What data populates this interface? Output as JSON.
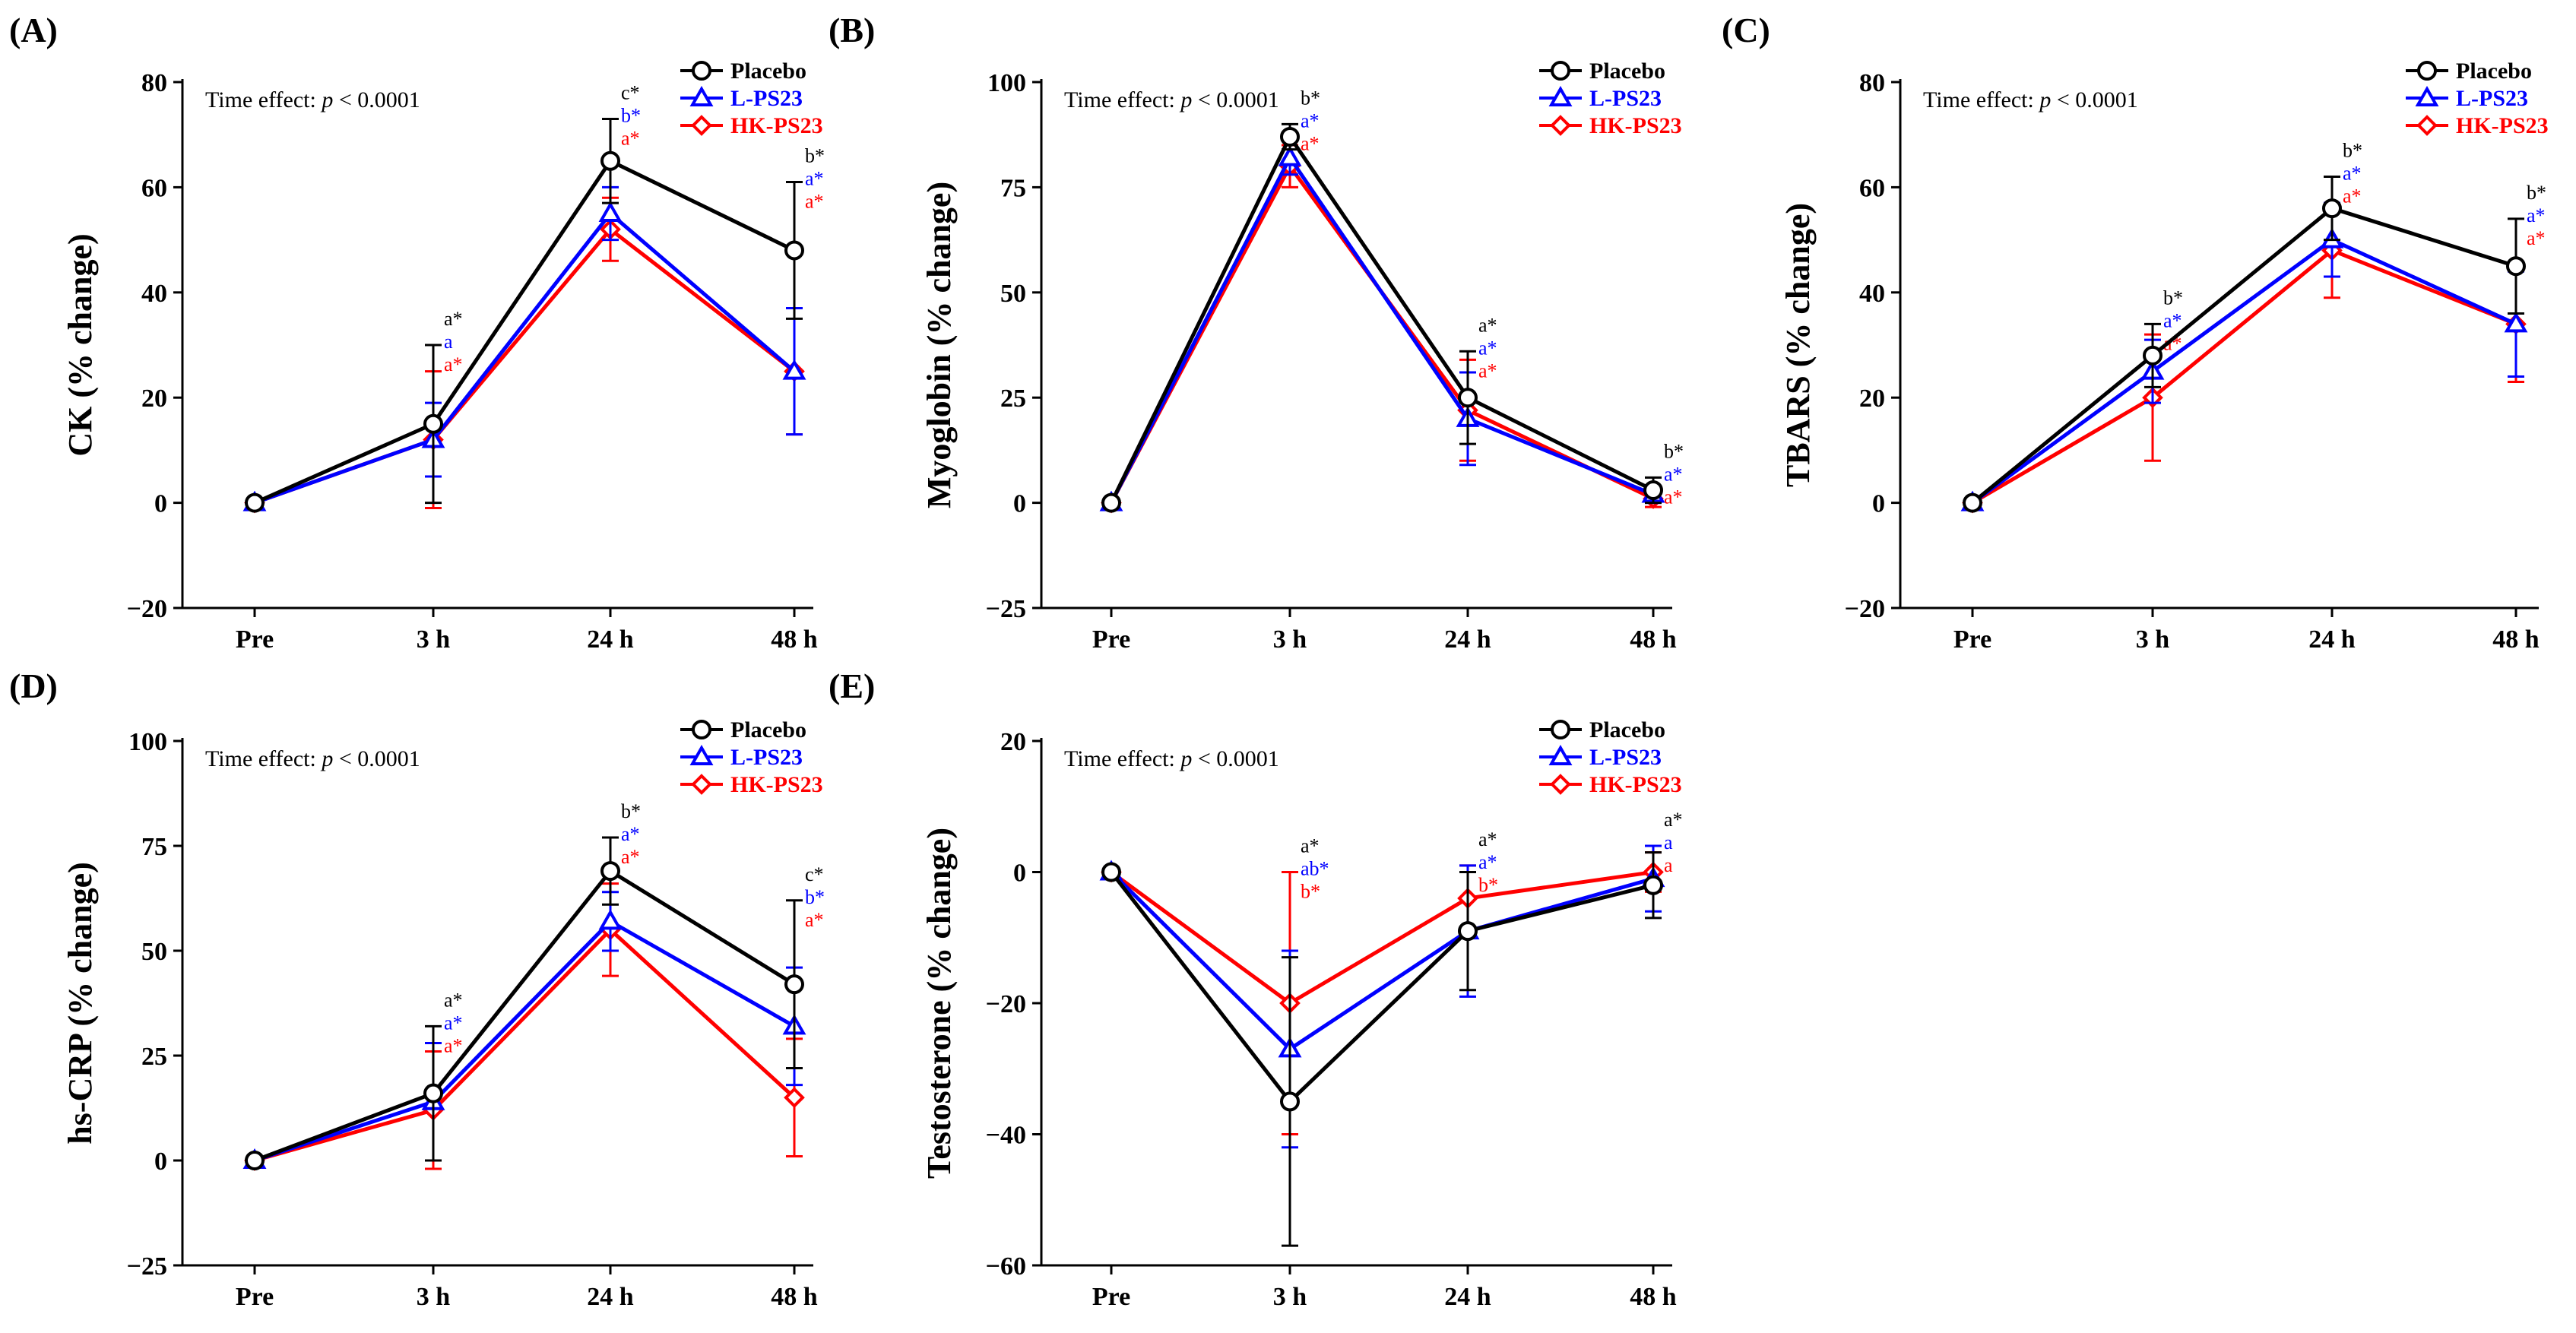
{
  "figure": {
    "series_colors": {
      "Placebo": "#000000",
      "L-PS23": "#0000ff",
      "HK-PS23": "#ff0000"
    },
    "marker_icons": {
      "Placebo": "circle-icon",
      "L-PS23": "triangle-icon",
      "HK-PS23": "diamond-icon"
    }
  },
  "chart_data": [
    {
      "id": "A",
      "panel_label": "(A)",
      "type": "line",
      "ylabel": "CK (% change)",
      "xlabel": "",
      "categories": [
        "Pre",
        "3 h",
        "24 h",
        "48 h"
      ],
      "ylim": [
        -20,
        80
      ],
      "yticks": [
        -20,
        0,
        20,
        40,
        60,
        80
      ],
      "ytick_labels": [
        "−20",
        "0",
        "20",
        "40",
        "60",
        "80"
      ],
      "note_prefix": "Time effect: ",
      "note_p": "p",
      "note_suffix": " < 0.0001",
      "legend": [
        "Placebo",
        "L-PS23",
        "HK-PS23"
      ],
      "series": [
        {
          "name": "Placebo",
          "values": [
            0,
            15,
            65,
            48
          ],
          "err": [
            0,
            15,
            8,
            13
          ],
          "labels": [
            "",
            "a*",
            "c*",
            "b*"
          ]
        },
        {
          "name": "L-PS23",
          "values": [
            0,
            12,
            55,
            25
          ],
          "err": [
            0,
            7,
            5,
            12
          ],
          "labels": [
            "",
            "a",
            "b*",
            "a*"
          ]
        },
        {
          "name": "HK-PS23",
          "values": [
            0,
            12,
            52,
            25
          ],
          "err": [
            0,
            13,
            6,
            12
          ],
          "labels": [
            "",
            "a*",
            "a*",
            "a*"
          ]
        }
      ]
    },
    {
      "id": "B",
      "panel_label": "(B)",
      "type": "line",
      "ylabel": "Myoglobin (% change)",
      "xlabel": "",
      "categories": [
        "Pre",
        "3 h",
        "24 h",
        "48 h"
      ],
      "ylim": [
        -25,
        100
      ],
      "yticks": [
        -25,
        0,
        25,
        50,
        75,
        100
      ],
      "ytick_labels": [
        "−25",
        "0",
        "25",
        "50",
        "75",
        "100"
      ],
      "note_prefix": "Time effect: ",
      "note_p": "p",
      "note_suffix": " < 0.0001",
      "legend": [
        "Placebo",
        "L-PS23",
        "HK-PS23"
      ],
      "series": [
        {
          "name": "Placebo",
          "values": [
            0,
            87,
            25,
            3
          ],
          "err": [
            0,
            3,
            11,
            3
          ],
          "labels": [
            "",
            "b*",
            "a*",
            "b*"
          ]
        },
        {
          "name": "L-PS23",
          "values": [
            0,
            82,
            20,
            2
          ],
          "err": [
            0,
            4,
            11,
            2
          ],
          "labels": [
            "",
            "a*",
            "a*",
            "a*"
          ]
        },
        {
          "name": "HK-PS23",
          "values": [
            0,
            80,
            22,
            1
          ],
          "err": [
            0,
            5,
            12,
            2
          ],
          "labels": [
            "",
            "a*",
            "a*",
            "a*"
          ]
        }
      ]
    },
    {
      "id": "C",
      "panel_label": "(C)",
      "type": "line",
      "ylabel": "TBARS (% change)",
      "xlabel": "",
      "categories": [
        "Pre",
        "3 h",
        "24 h",
        "48 h"
      ],
      "ylim": [
        -20,
        80
      ],
      "yticks": [
        -20,
        0,
        20,
        40,
        60,
        80
      ],
      "ytick_labels": [
        "−20",
        "0",
        "20",
        "40",
        "60",
        "80"
      ],
      "note_prefix": "Time effect: ",
      "note_p": "p",
      "note_suffix": " < 0.0001",
      "legend": [
        "Placebo",
        "L-PS23",
        "HK-PS23"
      ],
      "series": [
        {
          "name": "Placebo",
          "values": [
            0,
            28,
            56,
            45
          ],
          "err": [
            0,
            6,
            6,
            9
          ],
          "labels": [
            "",
            "b*",
            "b*",
            "b*"
          ]
        },
        {
          "name": "L-PS23",
          "values": [
            0,
            25,
            50,
            34
          ],
          "err": [
            0,
            6,
            7,
            10
          ],
          "labels": [
            "",
            "a*",
            "a*",
            "a*"
          ]
        },
        {
          "name": "HK-PS23",
          "values": [
            0,
            20,
            48,
            34
          ],
          "err": [
            0,
            12,
            9,
            11
          ],
          "labels": [
            "",
            "a*",
            "a*",
            "a*"
          ]
        }
      ]
    },
    {
      "id": "D",
      "panel_label": "(D)",
      "type": "line",
      "ylabel": "hs-CRP (% change)",
      "xlabel": "",
      "categories": [
        "Pre",
        "3 h",
        "24 h",
        "48 h"
      ],
      "ylim": [
        -25,
        100
      ],
      "yticks": [
        -25,
        0,
        25,
        50,
        75,
        100
      ],
      "ytick_labels": [
        "−25",
        "0",
        "25",
        "50",
        "75",
        "100"
      ],
      "note_prefix": "Time effect: ",
      "note_p": "p",
      "note_suffix": " < 0.0001",
      "legend": [
        "Placebo",
        "L-PS23",
        "HK-PS23"
      ],
      "series": [
        {
          "name": "Placebo",
          "values": [
            0,
            16,
            69,
            42
          ],
          "err": [
            0,
            16,
            8,
            20
          ],
          "labels": [
            "",
            "a*",
            "b*",
            "c*"
          ]
        },
        {
          "name": "L-PS23",
          "values": [
            0,
            14,
            57,
            32
          ],
          "err": [
            0,
            14,
            7,
            14
          ],
          "labels": [
            "",
            "a*",
            "a*",
            "b*"
          ]
        },
        {
          "name": "HK-PS23",
          "values": [
            0,
            12,
            55,
            15
          ],
          "err": [
            0,
            14,
            11,
            14
          ],
          "labels": [
            "",
            "a*",
            "a*",
            "a*"
          ]
        }
      ]
    },
    {
      "id": "E",
      "panel_label": "(E)",
      "type": "line",
      "ylabel": "Testosterone (% change)",
      "xlabel": "",
      "categories": [
        "Pre",
        "3 h",
        "24 h",
        "48 h"
      ],
      "ylim": [
        -60,
        20
      ],
      "yticks": [
        -60,
        -40,
        -20,
        0,
        20
      ],
      "ytick_labels": [
        "−60",
        "−40",
        "−20",
        "0",
        "20"
      ],
      "note_prefix": "Time effect: ",
      "note_p": "p",
      "note_suffix": " < 0.0001",
      "legend": [
        "Placebo",
        "L-PS23",
        "HK-PS23"
      ],
      "series": [
        {
          "name": "Placebo",
          "values": [
            0,
            -35,
            -9,
            -2
          ],
          "err": [
            0,
            22,
            9,
            5
          ],
          "labels": [
            "",
            "a*",
            "a*",
            "a*"
          ]
        },
        {
          "name": "L-PS23",
          "values": [
            0,
            -27,
            -9,
            -1
          ],
          "err": [
            0,
            15,
            10,
            5
          ],
          "labels": [
            "",
            "ab*",
            "a*",
            "a"
          ]
        },
        {
          "name": "HK-PS23",
          "values": [
            0,
            -20,
            -4,
            0
          ],
          "err": [
            0,
            20,
            5,
            3
          ],
          "labels": [
            "",
            "b*",
            "b*",
            "a"
          ]
        }
      ]
    }
  ]
}
